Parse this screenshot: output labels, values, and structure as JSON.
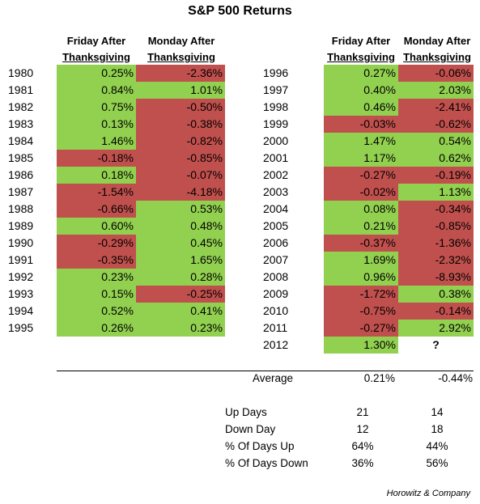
{
  "chart_data": {
    "type": "table",
    "title": "S&P 500 Returns",
    "columns": [
      {
        "line1": "Friday After",
        "line2": "Thanksgiving"
      },
      {
        "line1": "Monday After",
        "line2": "Thanksgiving"
      }
    ],
    "left_rows": [
      {
        "year": "1980",
        "friday": "0.25%",
        "monday": "-2.36%"
      },
      {
        "year": "1981",
        "friday": "0.84%",
        "monday": "1.01%"
      },
      {
        "year": "1982",
        "friday": "0.75%",
        "monday": "-0.50%"
      },
      {
        "year": "1983",
        "friday": "0.13%",
        "monday": "-0.38%"
      },
      {
        "year": "1984",
        "friday": "1.46%",
        "monday": "-0.82%"
      },
      {
        "year": "1985",
        "friday": "-0.18%",
        "monday": "-0.85%"
      },
      {
        "year": "1986",
        "friday": "0.18%",
        "monday": "-0.07%"
      },
      {
        "year": "1987",
        "friday": "-1.54%",
        "monday": "-4.18%"
      },
      {
        "year": "1988",
        "friday": "-0.66%",
        "monday": "0.53%"
      },
      {
        "year": "1989",
        "friday": "0.60%",
        "monday": "0.48%"
      },
      {
        "year": "1990",
        "friday": "-0.29%",
        "monday": "0.45%"
      },
      {
        "year": "1991",
        "friday": "-0.35%",
        "monday": "1.65%"
      },
      {
        "year": "1992",
        "friday": "0.23%",
        "monday": "0.28%"
      },
      {
        "year": "1993",
        "friday": "0.15%",
        "monday": "-0.25%"
      },
      {
        "year": "1994",
        "friday": "0.52%",
        "monday": "0.41%"
      },
      {
        "year": "1995",
        "friday": "0.26%",
        "monday": "0.23%"
      }
    ],
    "right_rows": [
      {
        "year": "1996",
        "friday": "0.27%",
        "monday": "-0.06%"
      },
      {
        "year": "1997",
        "friday": "0.40%",
        "monday": "2.03%"
      },
      {
        "year": "1998",
        "friday": "0.46%",
        "monday": "-2.41%"
      },
      {
        "year": "1999",
        "friday": "-0.03%",
        "monday": "-0.62%"
      },
      {
        "year": "2000",
        "friday": "1.47%",
        "monday": "0.54%"
      },
      {
        "year": "2001",
        "friday": "1.17%",
        "monday": "0.62%"
      },
      {
        "year": "2002",
        "friday": "-0.27%",
        "monday": "-0.19%"
      },
      {
        "year": "2003",
        "friday": "-0.02%",
        "monday": "1.13%"
      },
      {
        "year": "2004",
        "friday": "0.08%",
        "monday": "-0.34%"
      },
      {
        "year": "2005",
        "friday": "0.21%",
        "monday": "-0.85%"
      },
      {
        "year": "2006",
        "friday": "-0.37%",
        "monday": "-1.36%"
      },
      {
        "year": "2007",
        "friday": "1.69%",
        "monday": "-2.32%"
      },
      {
        "year": "2008",
        "friday": "0.96%",
        "monday": "-8.93%"
      },
      {
        "year": "2009",
        "friday": "-1.72%",
        "monday": "0.38%"
      },
      {
        "year": "2010",
        "friday": "-0.75%",
        "monday": "-0.14%"
      },
      {
        "year": "2011",
        "friday": "-0.27%",
        "monday": "2.92%"
      },
      {
        "year": "2012",
        "friday": "1.30%",
        "monday": "?"
      }
    ],
    "average": {
      "label": "Average",
      "friday": "0.21%",
      "monday": "-0.44%"
    },
    "stats": [
      {
        "label": "Up Days",
        "friday": "21",
        "monday": "14"
      },
      {
        "label": "Down Day",
        "friday": "12",
        "monday": "18"
      },
      {
        "label": "% Of Days Up",
        "friday": "64%",
        "monday": "44%"
      },
      {
        "label": "% Of Days Down",
        "friday": "36%",
        "monday": "56%"
      }
    ],
    "credit": "Horowitz & Company",
    "colors": {
      "positive": "#92d050",
      "negative": "#c0504d"
    }
  }
}
